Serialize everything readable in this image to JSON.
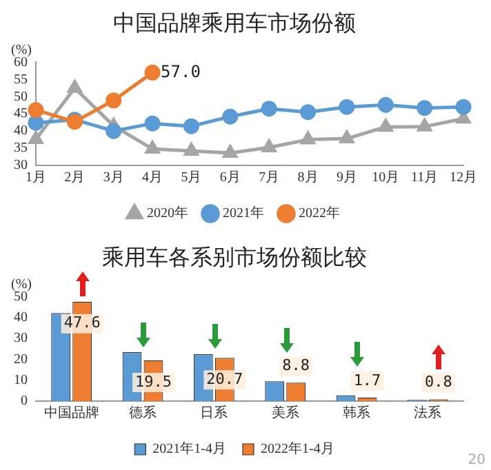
{
  "chart_data": [
    {
      "type": "line",
      "title": "中国品牌乘用车市场份额",
      "ylabel": "(%)",
      "categories": [
        "1月",
        "2月",
        "3月",
        "4月",
        "5月",
        "6月",
        "7月",
        "8月",
        "9月",
        "10月",
        "11月",
        "12月"
      ],
      "ylim": [
        30,
        60
      ],
      "yticks": [
        30,
        35,
        40,
        45,
        50,
        55,
        60
      ],
      "grid": false,
      "legend": "bottom",
      "series": [
        {
          "name": "2020年",
          "color": "#a5a5a5",
          "marker": "triangle",
          "values": [
            37.6,
            52.5,
            41.5,
            34.8,
            34.2,
            33.6,
            35.2,
            37.5,
            37.8,
            41.2,
            41.3,
            43.6
          ]
        },
        {
          "name": "2021年",
          "color": "#5b9bd5",
          "marker": "circle",
          "values": [
            42.4,
            43.3,
            40.0,
            42.2,
            41.4,
            44.2,
            46.5,
            45.5,
            47.0,
            47.6,
            46.7,
            47.0
          ]
        },
        {
          "name": "2022年",
          "color": "#ed7d31",
          "marker": "circle",
          "values": [
            46.1,
            42.7,
            48.9,
            57.0,
            null,
            null,
            null,
            null,
            null,
            null,
            null,
            null
          ],
          "value_labels": [
            null,
            null,
            null,
            "57.0",
            null,
            null,
            null,
            null,
            null,
            null,
            null,
            null
          ]
        }
      ]
    },
    {
      "type": "bar",
      "title": "乘用车各系别市场份额比较",
      "ylabel": "(%)",
      "categories": [
        "中国品牌",
        "德系",
        "日系",
        "美系",
        "韩系",
        "法系"
      ],
      "ylim": [
        0,
        50
      ],
      "yticks": [
        0,
        10,
        20,
        30,
        40,
        50
      ],
      "grid": false,
      "legend": "bottom",
      "annotations": [
        "20"
      ],
      "series": [
        {
          "name": "2021年1-4月",
          "color": "#5b9bd5",
          "values": [
            42.1,
            23.4,
            22.4,
            9.5,
            2.8,
            0.6
          ]
        },
        {
          "name": "2022年1-4月",
          "color": "#ed7d31",
          "values": [
            47.6,
            19.5,
            20.7,
            8.8,
            1.7,
            0.8
          ],
          "value_labels": [
            "47.6",
            "19.5",
            "20.7",
            "8.8",
            "1.7",
            "0.8"
          ]
        }
      ]
    }
  ]
}
